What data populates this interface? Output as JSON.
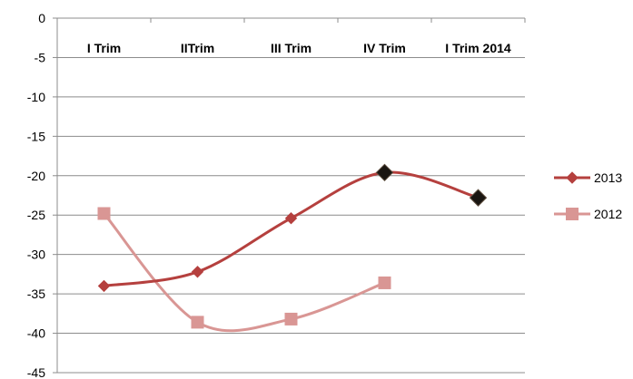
{
  "chart_data": {
    "type": "line",
    "categories": [
      "I Trim",
      "IITrim",
      "III Trim",
      "IV Trim",
      "I Trim 2014"
    ],
    "ylim": [
      -45,
      0
    ],
    "yticks": [
      0,
      -5,
      -10,
      -15,
      -20,
      -25,
      -30,
      -35,
      -40,
      -45
    ],
    "grid": true,
    "legend_position": "right",
    "smoothed": true,
    "series": [
      {
        "name": "2013",
        "marker": "diamond",
        "color": "#B5403E",
        "values": [
          -34,
          -32.2,
          -25.4,
          -19.6,
          -22.8
        ],
        "highlight_color": "#1a1612",
        "highlighted_points": [
          3,
          4
        ]
      },
      {
        "name": "2012",
        "marker": "square",
        "color": "#D99694",
        "values": [
          -24.8,
          -38.6,
          -38.2,
          -33.6,
          null
        ]
      }
    ]
  }
}
